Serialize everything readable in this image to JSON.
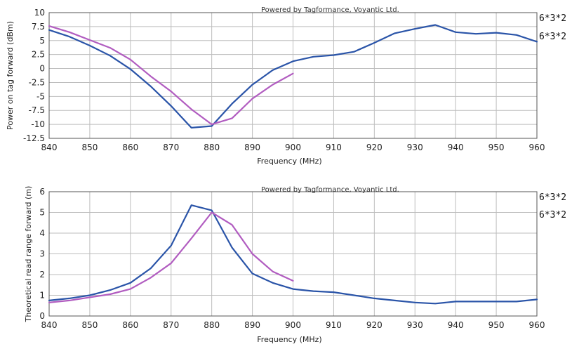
{
  "colors": {
    "series_a": "#2a54a8",
    "series_b": "#b15cc0",
    "grid": "#bdbdbd",
    "frame": "#555555"
  },
  "chart_data": [
    {
      "type": "line",
      "title": "",
      "credit": "Powered by Tagformance, Voyantic Ltd.",
      "xlabel": "Frequency (MHz)",
      "ylabel": "Power on tag forward (dBm)",
      "xlim": [
        840,
        960
      ],
      "ylim": [
        -12.5,
        10
      ],
      "xticks": [
        840,
        850,
        860,
        870,
        880,
        890,
        900,
        910,
        920,
        930,
        940,
        950,
        960
      ],
      "yticks": [
        -12.5,
        -10,
        -7.5,
        -5,
        -2.5,
        0,
        2.5,
        5,
        7.5,
        10
      ],
      "ytick_labels": [
        "-12.5",
        "-10",
        "-7.5",
        "-5",
        "-2.5",
        "0",
        "2.5",
        "5",
        "7.5",
        "10"
      ],
      "grid": true,
      "legend_position": "right",
      "series": [
        {
          "name": "6*3*2",
          "color_key": "series_a",
          "x": [
            840,
            845,
            850,
            855,
            860,
            865,
            870,
            875,
            880,
            885,
            890,
            895,
            900,
            905,
            910,
            915,
            920,
            925,
            930,
            935,
            940,
            945,
            950,
            955,
            960
          ],
          "y": [
            6.9,
            5.7,
            4.1,
            2.3,
            -0.1,
            -3.2,
            -6.7,
            -10.6,
            -10.3,
            -6.3,
            -2.9,
            -0.3,
            1.3,
            2.1,
            2.4,
            3.0,
            4.6,
            6.3,
            7.1,
            7.8,
            6.5,
            6.2,
            6.4,
            6.0,
            4.8
          ]
        },
        {
          "name": "6*3*2",
          "color_key": "series_b",
          "x": [
            840,
            845,
            850,
            855,
            860,
            865,
            870,
            875,
            880,
            885,
            890,
            895,
            900
          ],
          "y": [
            7.6,
            6.5,
            5.1,
            3.7,
            1.6,
            -1.4,
            -4.1,
            -7.3,
            -10.0,
            -8.9,
            -5.4,
            -2.9,
            -0.9
          ]
        }
      ]
    },
    {
      "type": "line",
      "title": "",
      "credit": "Powered by Tagformance, Voyantic Ltd.",
      "xlabel": "Frequency (MHz)",
      "ylabel": "Theoretical read range forward (m)",
      "xlim": [
        840,
        960
      ],
      "ylim": [
        0,
        6
      ],
      "xticks": [
        840,
        850,
        860,
        870,
        880,
        890,
        900,
        910,
        920,
        930,
        940,
        950,
        960
      ],
      "yticks": [
        0,
        1,
        2,
        3,
        4,
        5,
        6
      ],
      "ytick_labels": [
        "0",
        "1",
        "2",
        "3",
        "4",
        "5",
        "6"
      ],
      "grid": true,
      "legend_position": "right",
      "series": [
        {
          "name": "6*3*2",
          "color_key": "series_a",
          "x": [
            840,
            845,
            850,
            855,
            860,
            865,
            870,
            875,
            880,
            885,
            890,
            895,
            900,
            905,
            910,
            915,
            920,
            925,
            930,
            935,
            940,
            945,
            950,
            955,
            960
          ],
          "y": [
            0.75,
            0.85,
            1.0,
            1.25,
            1.6,
            2.3,
            3.4,
            5.35,
            5.1,
            3.3,
            2.05,
            1.6,
            1.3,
            1.2,
            1.15,
            1.0,
            0.85,
            0.75,
            0.65,
            0.6,
            0.7,
            0.7,
            0.7,
            0.7,
            0.8
          ]
        },
        {
          "name": "6*3*2",
          "color_key": "series_b",
          "x": [
            840,
            845,
            850,
            855,
            860,
            865,
            870,
            875,
            880,
            885,
            890,
            895,
            900
          ],
          "y": [
            0.65,
            0.75,
            0.9,
            1.05,
            1.3,
            1.85,
            2.55,
            3.75,
            5.0,
            4.4,
            3.0,
            2.15,
            1.7
          ]
        }
      ]
    }
  ]
}
